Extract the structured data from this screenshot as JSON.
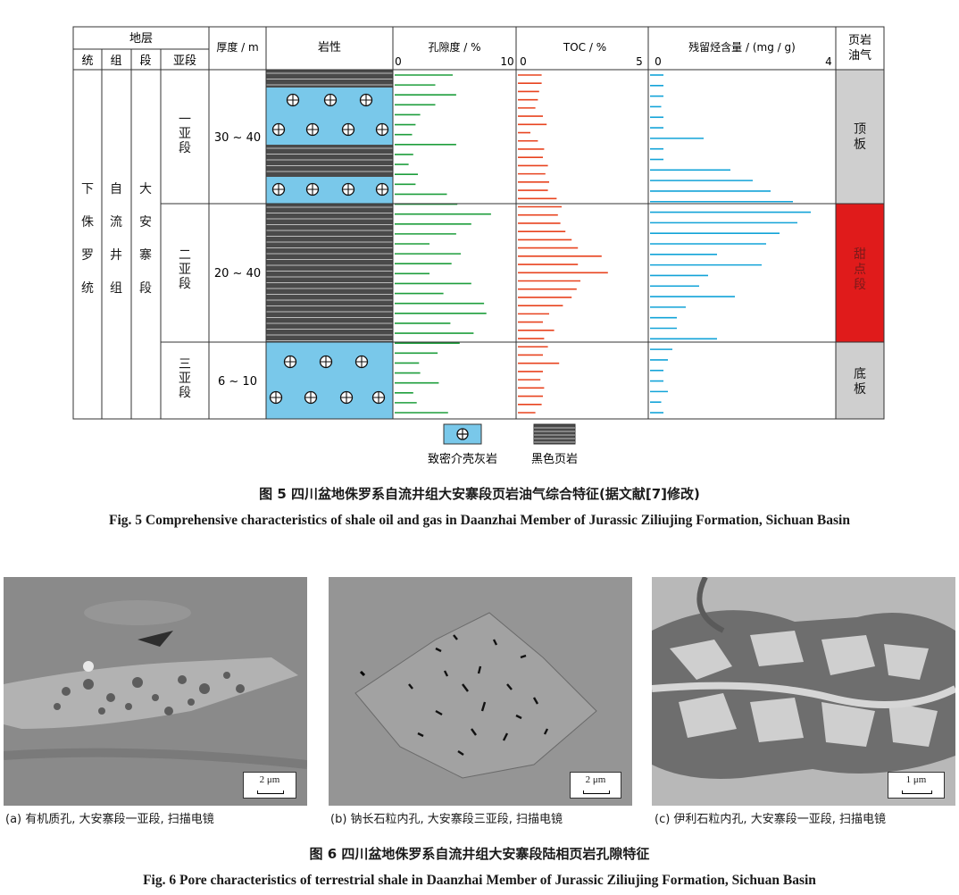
{
  "figure5": {
    "headers": {
      "stratum": "地层",
      "series": "统",
      "group": "组",
      "member": "段",
      "submember": "亚段",
      "thickness": "厚度 / m",
      "lithology": "岩性",
      "porosity": "孔隙度 / %",
      "porosity_min": "0",
      "porosity_max": "10",
      "toc": "TOC / %",
      "toc_min": "0",
      "toc_max": "5",
      "hc": "残留烃含量 / (mg / g)",
      "hc_min": "0",
      "hc_max": "4",
      "oilgas": "页岩油气"
    },
    "strat": {
      "series": "下侏罗统",
      "group": "自流井组",
      "member": "大安寨段"
    },
    "submembers": [
      {
        "name": "一亚段",
        "thickness": "30 ~ 40",
        "zone": "顶板",
        "zone_color": "#cfcfcf"
      },
      {
        "name": "二亚段",
        "thickness": "20 ~ 40",
        "zone": "甜点段",
        "zone_color": "#e01b1b"
      },
      {
        "name": "三亚段",
        "thickness": "6 ~ 10",
        "zone": "底板",
        "zone_color": "#cfcfcf"
      }
    ],
    "legend": {
      "limestone": "致密介壳灰岩",
      "shale": "黑色页岩",
      "limestone_color": "#79c8ea",
      "shale_color": "#4a4a4a"
    },
    "series_colors": {
      "porosity": "#1e9e3c",
      "toc": "#e8431f",
      "hc": "#12a3d8"
    },
    "porosity_values": [
      5.0,
      3.5,
      5.3,
      3.5,
      2.2,
      1.8,
      1.5,
      5.3,
      1.6,
      1.2,
      2.0,
      1.8,
      4.5,
      5.4,
      8.3,
      6.6,
      5.3,
      3.0,
      5.7,
      4.9,
      3.0,
      6.6,
      4.2,
      7.7,
      7.9,
      4.8,
      6.8,
      5.6,
      3.7,
      2.1,
      2.2,
      3.8,
      1.6,
      1.9,
      4.6
    ],
    "toc_values": [
      0.95,
      0.95,
      0.85,
      0.8,
      0.7,
      1.0,
      1.15,
      0.5,
      0.8,
      1.05,
      1.0,
      1.2,
      1.1,
      1.25,
      1.2,
      1.55,
      1.75,
      1.6,
      1.7,
      1.9,
      2.15,
      2.4,
      3.35,
      2.4,
      3.6,
      2.5,
      2.35,
      2.15,
      1.8,
      1.25,
      1.0,
      1.45,
      1.05,
      1.2,
      1.0,
      1.65,
      1.0,
      0.9,
      1.05,
      1.0,
      0.95,
      0.7
    ],
    "hc_values": [
      0.3,
      0.3,
      0.3,
      0.25,
      0.3,
      0.3,
      1.2,
      0.3,
      0.3,
      1.8,
      2.3,
      2.7,
      3.2,
      3.6,
      3.3,
      2.9,
      2.6,
      1.5,
      2.5,
      1.3,
      1.1,
      1.9,
      0.8,
      0.6,
      0.6,
      1.5,
      0.5,
      0.4,
      0.3,
      0.3,
      0.4,
      0.25,
      0.3
    ]
  },
  "captions": {
    "fig5_cn": "图 5   四川盆地侏罗系自流井组大安寨段页岩油气综合特征(据文献[7]修改)",
    "fig5_en": "Fig. 5   Comprehensive characteristics of shale oil and gas in Daanzhai Member of Jurassic Ziliujing Formation, Sichuan Basin",
    "fig6_cn": "图 6   四川盆地侏罗系自流井组大安寨段陆相页岩孔隙特征",
    "fig6_en": "Fig. 6   Pore characteristics of terrestrial shale in Daanzhai Member of Jurassic Ziliujing Formation, Sichuan Basin"
  },
  "panels": [
    {
      "caption": "(a) 有机质孔, 大安寨段一亚段, 扫描电镜",
      "scale": "2 μm"
    },
    {
      "caption": "(b) 钠长石粒内孔, 大安寨段三亚段, 扫描电镜",
      "scale": "2 μm"
    },
    {
      "caption": "(c) 伊利石粒内孔, 大安寨段一亚段, 扫描电镜",
      "scale": "1 μm"
    }
  ]
}
